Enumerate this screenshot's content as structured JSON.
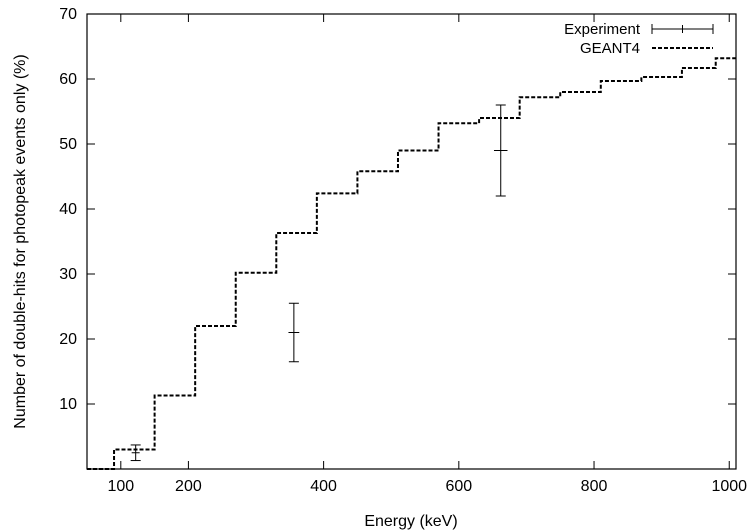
{
  "chart_data": {
    "type": "line",
    "xlabel": "Energy (keV)",
    "ylabel": "Number of double-hits for photopeak events only (%)",
    "xlim": [
      50,
      1010
    ],
    "ylim": [
      0,
      70
    ],
    "x_ticks": [
      100,
      200,
      400,
      600,
      800,
      1000
    ],
    "y_ticks": [
      10,
      20,
      30,
      40,
      50,
      60,
      70
    ],
    "grid": false,
    "legend_position": "top-right",
    "series": [
      {
        "name": "Experiment",
        "style": "errorbar",
        "points": [
          {
            "x": 122,
            "y": 2.5,
            "yerr": 1.2,
            "xerr": 4
          },
          {
            "x": 356,
            "y": 21.0,
            "yerr": 4.5,
            "xerr": 8
          },
          {
            "x": 662,
            "y": 49.0,
            "yerr": 7.0,
            "xerr": 10
          }
        ]
      },
      {
        "name": "GEANT4",
        "style": "step-dashed",
        "steps": [
          {
            "x0": 50,
            "x1": 90,
            "y": 0.0
          },
          {
            "x0": 90,
            "x1": 150,
            "y": 3.0
          },
          {
            "x0": 150,
            "x1": 210,
            "y": 11.3
          },
          {
            "x0": 210,
            "x1": 270,
            "y": 22.0
          },
          {
            "x0": 270,
            "x1": 330,
            "y": 30.2
          },
          {
            "x0": 330,
            "x1": 390,
            "y": 36.3
          },
          {
            "x0": 390,
            "x1": 450,
            "y": 42.4
          },
          {
            "x0": 450,
            "x1": 510,
            "y": 45.8
          },
          {
            "x0": 510,
            "x1": 570,
            "y": 49.0
          },
          {
            "x0": 570,
            "x1": 630,
            "y": 53.2
          },
          {
            "x0": 630,
            "x1": 690,
            "y": 54.0
          },
          {
            "x0": 690,
            "x1": 750,
            "y": 57.2
          },
          {
            "x0": 750,
            "x1": 810,
            "y": 58.0
          },
          {
            "x0": 810,
            "x1": 870,
            "y": 59.7
          },
          {
            "x0": 870,
            "x1": 930,
            "y": 60.3
          },
          {
            "x0": 930,
            "x1": 980,
            "y": 61.7
          },
          {
            "x0": 980,
            "x1": 1010,
            "y": 63.2
          }
        ]
      }
    ]
  }
}
